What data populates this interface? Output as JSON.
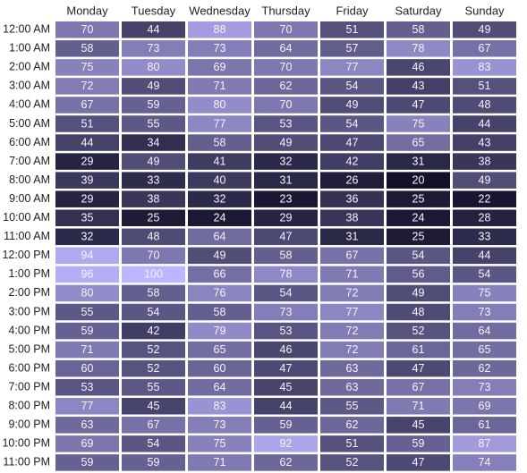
{
  "chart_data": {
    "type": "heatmap",
    "title": "",
    "xlabel": "",
    "ylabel": "",
    "columns": [
      "Monday",
      "Tuesday",
      "Wednesday",
      "Thursday",
      "Friday",
      "Saturday",
      "Sunday"
    ],
    "rows": [
      "12:00 AM",
      "1:00 AM",
      "2:00 AM",
      "3:00 AM",
      "4:00 AM",
      "5:00 AM",
      "6:00 AM",
      "7:00 AM",
      "8:00 AM",
      "9:00 AM",
      "10:00 AM",
      "11:00 AM",
      "12:00 PM",
      "1:00 PM",
      "2:00 PM",
      "3:00 PM",
      "4:00 PM",
      "5:00 PM",
      "6:00 PM",
      "7:00 PM",
      "8:00 PM",
      "9:00 PM",
      "10:00 PM",
      "11:00 PM"
    ],
    "values": [
      [
        70,
        44,
        88,
        70,
        51,
        58,
        49
      ],
      [
        58,
        73,
        73,
        64,
        57,
        78,
        67
      ],
      [
        75,
        80,
        69,
        70,
        77,
        46,
        83
      ],
      [
        72,
        49,
        71,
        62,
        54,
        43,
        51
      ],
      [
        67,
        59,
        80,
        70,
        49,
        47,
        48
      ],
      [
        51,
        55,
        77,
        53,
        54,
        75,
        44
      ],
      [
        44,
        34,
        58,
        49,
        47,
        65,
        43
      ],
      [
        29,
        49,
        41,
        32,
        42,
        31,
        38
      ],
      [
        39,
        33,
        40,
        31,
        26,
        20,
        49
      ],
      [
        29,
        38,
        32,
        23,
        36,
        25,
        22
      ],
      [
        35,
        25,
        24,
        29,
        38,
        24,
        28
      ],
      [
        32,
        48,
        64,
        47,
        31,
        25,
        33
      ],
      [
        94,
        70,
        49,
        58,
        67,
        54,
        44
      ],
      [
        96,
        100,
        66,
        78,
        71,
        56,
        54
      ],
      [
        80,
        58,
        76,
        54,
        72,
        49,
        75
      ],
      [
        55,
        54,
        58,
        73,
        77,
        48,
        73
      ],
      [
        59,
        42,
        79,
        53,
        72,
        52,
        64
      ],
      [
        71,
        52,
        65,
        46,
        72,
        61,
        65
      ],
      [
        60,
        52,
        60,
        47,
        63,
        47,
        62
      ],
      [
        53,
        55,
        64,
        45,
        63,
        67,
        73
      ],
      [
        77,
        45,
        83,
        44,
        55,
        71,
        69
      ],
      [
        63,
        67,
        73,
        59,
        62,
        45,
        61
      ],
      [
        69,
        54,
        75,
        92,
        51,
        59,
        87
      ],
      [
        59,
        59,
        71,
        62,
        52,
        47,
        74
      ]
    ],
    "value_range": [
      20,
      100
    ],
    "color_scale": {
      "low": "#13112a",
      "high": "#bcb6ff"
    },
    "label_color": "#f4f4f8",
    "text_color": "#222222"
  }
}
